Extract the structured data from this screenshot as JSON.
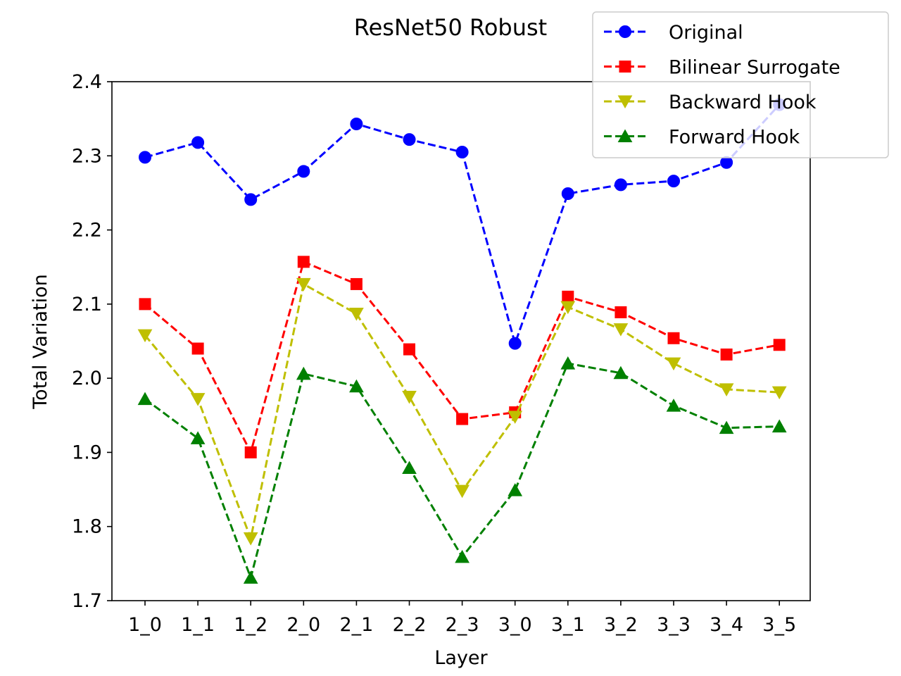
{
  "chart_data": {
    "type": "line",
    "title": "ResNet50 Robust",
    "xlabel": "Layer",
    "ylabel": "Total Variation",
    "categories": [
      "1_0",
      "1_1",
      "1_2",
      "2_0",
      "2_1",
      "2_2",
      "2_3",
      "3_0",
      "3_1",
      "3_2",
      "3_3",
      "3_4",
      "3_5"
    ],
    "ylim": [
      1.7,
      2.4
    ],
    "yticks": [
      "1.7",
      "1.8",
      "1.9",
      "2.0",
      "2.1",
      "2.2",
      "2.3",
      "2.4"
    ],
    "grid": false,
    "legend_position": "top-right",
    "series": [
      {
        "name": "Original",
        "color": "#0000ff",
        "marker": "circle",
        "values": [
          2.298,
          2.318,
          2.241,
          2.279,
          2.343,
          2.322,
          2.305,
          2.047,
          2.249,
          2.261,
          2.266,
          2.291,
          2.369
        ]
      },
      {
        "name": "Bilinear Surrogate",
        "color": "#ff0000",
        "marker": "square",
        "values": [
          2.1,
          2.04,
          1.9,
          2.157,
          2.127,
          2.039,
          1.945,
          1.954,
          2.11,
          2.089,
          2.054,
          2.032,
          2.045
        ]
      },
      {
        "name": "Backward Hook",
        "color": "#bfbf00",
        "marker": "triangle-down",
        "values": [
          2.058,
          1.972,
          1.784,
          2.127,
          2.087,
          1.975,
          1.848,
          1.948,
          2.096,
          2.066,
          2.02,
          1.985,
          1.981
        ]
      },
      {
        "name": "Forward Hook",
        "color": "#008000",
        "marker": "triangle-up",
        "values": [
          1.972,
          1.919,
          1.731,
          2.006,
          1.989,
          1.879,
          1.759,
          1.849,
          2.02,
          2.007,
          1.963,
          1.933,
          1.935
        ]
      }
    ]
  }
}
